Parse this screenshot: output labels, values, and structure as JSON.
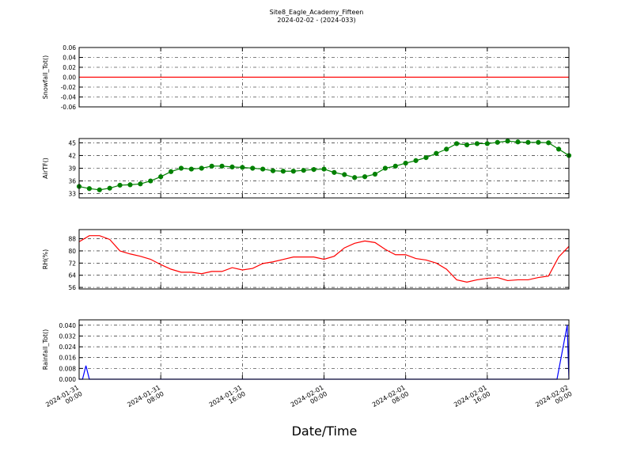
{
  "chart_data": [
    {
      "type": "line",
      "title": "Site8_Eagle_Academy_Fifteen",
      "subtitle": "2024-02-02 - (2024-033)",
      "y_label": "Snowfall_Tot()",
      "color": "#ff0000",
      "grid": true,
      "x": [
        "2024-01-31 00:00",
        "2024-02-02 00:00"
      ],
      "values": [
        0,
        0
      ],
      "ylim": [
        -0.06,
        0.06
      ],
      "yticks": [
        -0.06,
        -0.04,
        -0.02,
        {
          "value": 0,
          "label": "0.00"
        },
        0.02,
        0.04,
        0.06
      ]
    },
    {
      "type": "line",
      "y_label": "AirTF()",
      "color": "#008000",
      "marker": "circle",
      "grid": true,
      "x": [
        "2024-01-31 00:00",
        "2024-01-31 01:00",
        "2024-01-31 02:00",
        "2024-01-31 03:00",
        "2024-01-31 04:00",
        "2024-01-31 05:00",
        "2024-01-31 06:00",
        "2024-01-31 07:00",
        "2024-01-31 08:00",
        "2024-01-31 09:00",
        "2024-01-31 10:00",
        "2024-01-31 11:00",
        "2024-01-31 12:00",
        "2024-01-31 13:00",
        "2024-01-31 14:00",
        "2024-01-31 15:00",
        "2024-01-31 16:00",
        "2024-01-31 17:00",
        "2024-01-31 18:00",
        "2024-01-31 19:00",
        "2024-01-31 20:00",
        "2024-01-31 21:00",
        "2024-01-31 22:00",
        "2024-01-31 23:00",
        "2024-02-01 00:00",
        "2024-02-01 01:00",
        "2024-02-01 02:00",
        "2024-02-01 03:00",
        "2024-02-01 04:00",
        "2024-02-01 05:00",
        "2024-02-01 06:00",
        "2024-02-01 07:00",
        "2024-02-01 08:00",
        "2024-02-01 09:00",
        "2024-02-01 10:00",
        "2024-02-01 11:00",
        "2024-02-01 12:00",
        "2024-02-01 13:00",
        "2024-02-01 14:00",
        "2024-02-01 15:00",
        "2024-02-01 16:00",
        "2024-02-01 17:00",
        "2024-02-01 18:00",
        "2024-02-01 19:00",
        "2024-02-01 20:00",
        "2024-02-01 21:00",
        "2024-02-01 22:00",
        "2024-02-01 23:00",
        "2024-02-02 00:00"
      ],
      "values": [
        34.7,
        34.2,
        33.9,
        34.3,
        35.0,
        35.1,
        35.3,
        36.0,
        37.0,
        38.2,
        39.0,
        38.8,
        39.0,
        39.5,
        39.5,
        39.3,
        39.2,
        39.0,
        38.8,
        38.4,
        38.3,
        38.3,
        38.5,
        38.7,
        38.8,
        38.0,
        37.5,
        36.8,
        37.0,
        37.6,
        39.0,
        39.5,
        40.2,
        40.8,
        41.5,
        42.5,
        43.5,
        44.8,
        44.5,
        44.8,
        44.8,
        45.1,
        45.4,
        45.2,
        45.1,
        45.1,
        45.0,
        43.5,
        42.0
      ],
      "ylim": [
        32,
        46
      ],
      "yticks": [
        33,
        36,
        39,
        42,
        45
      ]
    },
    {
      "type": "line",
      "y_label": "RH(%)",
      "color": "#ff0000",
      "grid": true,
      "x": [
        "2024-01-31 00:00",
        "2024-01-31 01:00",
        "2024-01-31 02:00",
        "2024-01-31 03:00",
        "2024-01-31 04:00",
        "2024-01-31 05:00",
        "2024-01-31 06:00",
        "2024-01-31 07:00",
        "2024-01-31 08:00",
        "2024-01-31 09:00",
        "2024-01-31 10:00",
        "2024-01-31 11:00",
        "2024-01-31 12:00",
        "2024-01-31 13:00",
        "2024-01-31 14:00",
        "2024-01-31 15:00",
        "2024-01-31 16:00",
        "2024-01-31 17:00",
        "2024-01-31 18:00",
        "2024-01-31 19:00",
        "2024-01-31 20:00",
        "2024-01-31 21:00",
        "2024-01-31 22:00",
        "2024-01-31 23:00",
        "2024-02-01 00:00",
        "2024-02-01 01:00",
        "2024-02-01 02:00",
        "2024-02-01 03:00",
        "2024-02-01 04:00",
        "2024-02-01 05:00",
        "2024-02-01 06:00",
        "2024-02-01 07:00",
        "2024-02-01 08:00",
        "2024-02-01 09:00",
        "2024-02-01 10:00",
        "2024-02-01 11:00",
        "2024-02-01 12:00",
        "2024-02-01 13:00",
        "2024-02-01 14:00",
        "2024-02-01 15:00",
        "2024-02-01 16:00",
        "2024-02-01 17:00",
        "2024-02-01 18:00",
        "2024-02-01 19:00",
        "2024-02-01 20:00",
        "2024-02-01 21:00",
        "2024-02-01 22:00",
        "2024-02-01 23:00",
        "2024-02-02 00:00"
      ],
      "values": [
        86,
        90,
        90,
        87.5,
        80,
        78,
        76.5,
        74.5,
        71,
        68,
        66,
        66,
        65,
        66.5,
        66.5,
        69,
        67.5,
        68.5,
        71.7,
        72.8,
        74.4,
        76,
        76,
        76,
        74.5,
        76.5,
        82,
        85,
        86.5,
        85.5,
        81,
        77.5,
        77.5,
        75,
        74,
        72,
        68,
        61,
        59.5,
        61,
        62,
        62.5,
        60.5,
        61,
        61,
        62.5,
        63.5,
        76,
        83
      ],
      "ylim": [
        55,
        94
      ],
      "yticks": [
        56,
        64,
        72,
        80,
        88
      ]
    },
    {
      "type": "line",
      "y_label": "Rainfall_Tot()",
      "x_label": "Date/Time",
      "color": "#0000ff",
      "grid": true,
      "x": [
        "2024-01-31 00:00",
        "2024-01-31 00:20",
        "2024-01-31 00:40",
        "2024-01-31 01:00",
        "2024-02-01 22:50",
        "2024-02-01 23:50",
        "2024-02-02 00:00"
      ],
      "values": [
        0,
        0,
        0.01,
        0,
        0,
        0.04,
        0
      ],
      "ylim": [
        0,
        0.044
      ],
      "yticks": [
        {
          "value": 0,
          "label": "0.000"
        },
        0.008,
        0.016,
        0.024,
        0.032,
        {
          "value": 0.04,
          "label": "0.040"
        }
      ],
      "xlim": [
        "2024-01-31 00:00",
        "2024-02-02 00:00"
      ],
      "xticks": [
        "2024-01-31 00:00",
        "2024-01-31 08:00",
        "2024-01-31 16:00",
        "2024-02-01 00:00",
        "2024-02-01 08:00",
        "2024-02-01 16:00",
        "2024-02-02 00:00"
      ]
    }
  ]
}
